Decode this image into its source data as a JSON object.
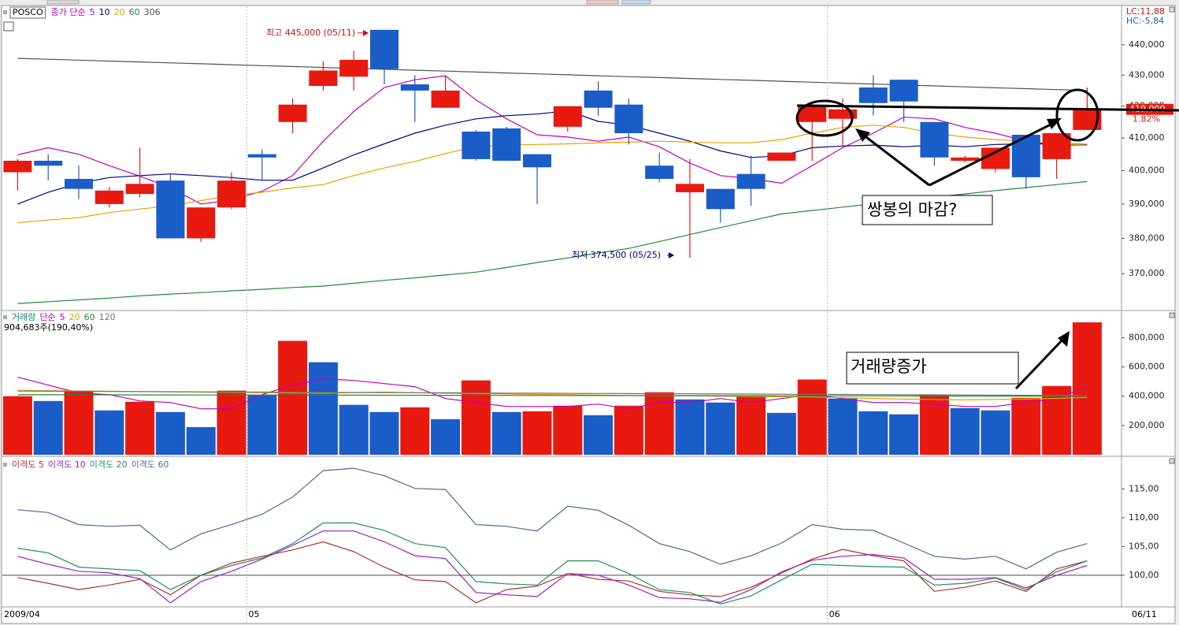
{
  "chart_data": [
    {
      "type": "candlestick",
      "name": "POSCO",
      "legend_prefix": "종가 단순",
      "log_scale": true,
      "up_color": "#e8190e",
      "down_color": "#1a5cc8",
      "open": [
        399500,
        403000,
        397500,
        390000,
        393000,
        397000,
        380000,
        389000,
        405000,
        415000,
        426500,
        429500,
        445000,
        427000,
        419500,
        412000,
        413000,
        405000,
        413500,
        425000,
        420500,
        401500,
        393500,
        394500,
        399000,
        403000,
        415000,
        416000,
        426000,
        428500,
        415000,
        403000,
        400500,
        411000,
        403500,
        412500
      ],
      "high": [
        403500,
        405000,
        401500,
        395000,
        407000,
        399000,
        389000,
        399500,
        406500,
        422500,
        434500,
        438000,
        445000,
        430000,
        430000,
        412500,
        413500,
        405000,
        420000,
        428000,
        422500,
        405500,
        403500,
        394500,
        404500,
        405500,
        421000,
        422500,
        430000,
        428500,
        415000,
        404500,
        407000,
        411000,
        411500,
        426000
      ],
      "low": [
        394000,
        397000,
        391500,
        389000,
        392000,
        380000,
        379000,
        388500,
        397000,
        411500,
        425000,
        425000,
        427000,
        415000,
        419500,
        403000,
        403000,
        390000,
        412000,
        417000,
        408000,
        396500,
        374500,
        384500,
        389500,
        403000,
        403000,
        407500,
        417000,
        415000,
        401500,
        402500,
        399500,
        394500,
        397500,
        412500
      ],
      "close": [
        403000,
        401500,
        394500,
        394000,
        396000,
        380000,
        389000,
        397000,
        404000,
        420500,
        431500,
        435000,
        432000,
        425000,
        425000,
        403500,
        403000,
        401000,
        420000,
        419500,
        411500,
        397500,
        396000,
        388500,
        394500,
        405500,
        420500,
        419000,
        421000,
        421500,
        404000,
        404000,
        407000,
        398000,
        411500,
        419000
      ],
      "series": [
        {
          "name": "5",
          "color": "#c000c0",
          "values": [
            404800,
            407000,
            405000,
            401500,
            398300,
            394800,
            390000,
            391200,
            393800,
            398500,
            409000,
            418300,
            426000,
            428500,
            429800,
            422000,
            416000,
            411000,
            410300,
            409000,
            410300,
            407300,
            402300,
            398500,
            397600,
            396200,
            401500,
            407000,
            411500,
            416500,
            416000,
            413300,
            411500,
            409000,
            407800,
            407800
          ]
        },
        {
          "name": "10",
          "color": "#000080",
          "values": [
            390000,
            393500,
            396200,
            397900,
            398500,
            399000,
            398500,
            397900,
            397100,
            397100,
            400800,
            404800,
            408200,
            411500,
            414000,
            416000,
            417000,
            417500,
            418500,
            415200,
            414000,
            411500,
            409000,
            406000,
            404000,
            404500,
            407000,
            407500,
            407800,
            407300,
            407800,
            407300,
            408000,
            408200,
            408200,
            408000
          ]
        },
        {
          "name": "20",
          "color": "#e8a000",
          "values": [
            384500,
            385300,
            386000,
            387500,
            388500,
            389500,
            391000,
            392500,
            393500,
            394800,
            395800,
            398500,
            400800,
            402800,
            405200,
            407300,
            407800,
            408000,
            408200,
            408500,
            408700,
            409000,
            408700,
            408500,
            408500,
            409500,
            411500,
            413300,
            414000,
            413300,
            411500,
            410300,
            409500,
            409000,
            408200,
            407800
          ]
        },
        {
          "name": "60",
          "color": "#1f8a3a",
          "values": [
            361700,
            362200,
            362700,
            363200,
            363800,
            364300,
            364700,
            365200,
            365600,
            366100,
            366500,
            367300,
            368100,
            368800,
            369600,
            370400,
            371700,
            373100,
            374400,
            375800,
            377100,
            379100,
            381100,
            383100,
            385100,
            387100,
            388100,
            389100,
            390100,
            391100,
            392100,
            393000,
            394000,
            394900,
            395800,
            396700
          ]
        },
        {
          "name": "306",
          "color": "#505050",
          "values": [
            435500,
            435200,
            434900,
            434600,
            434300,
            434000,
            433700,
            433400,
            433100,
            432800,
            432500,
            432200,
            431900,
            431600,
            431300,
            431000,
            430700,
            430400,
            430100,
            429800,
            429500,
            429200,
            428900,
            428600,
            428300,
            428000,
            427700,
            427400,
            427100,
            426800,
            426500,
            426200,
            425900,
            425600,
            425300,
            425000
          ]
        }
      ],
      "ylim": [
        360000,
        453000
      ],
      "yticks": [
        {
          "value": 370000,
          "label": "370,000"
        },
        {
          "value": 380000,
          "label": "380,000"
        },
        {
          "value": 390000,
          "label": "390,000"
        },
        {
          "value": 400000,
          "label": "400,000"
        },
        {
          "value": 410000,
          "label": "410,000"
        },
        {
          "value": 420000,
          "label": "420,000"
        },
        {
          "value": 430000,
          "label": "430,000"
        },
        {
          "value": 440000,
          "label": "440,000"
        }
      ],
      "high_label": "최고 445,000 (05/11)",
      "low_label": "최저 374,500 (05/25)",
      "last_price": {
        "value": 419000,
        "label": "419,000"
      },
      "change": {
        "value": 1.82,
        "label": "1.82%"
      },
      "lc_label": "LC:11,88",
      "hc_label": "HC:-5,84",
      "annotation": "쌍봉의 마감?"
    },
    {
      "type": "bar",
      "title": "거래량",
      "legend_prefix": "단순",
      "up_color": "#e8190e",
      "down_color": "#1a5cc8",
      "values": [
        400000,
        367000,
        438000,
        303000,
        362000,
        292000,
        189000,
        438000,
        411000,
        778000,
        632000,
        341000,
        292000,
        324000,
        243000,
        508000,
        292000,
        297000,
        335000,
        270000,
        335000,
        427000,
        378000,
        357000,
        405000,
        286000,
        514000,
        384000,
        297000,
        276000,
        411000,
        319000,
        303000,
        389000,
        470000,
        904683
      ],
      "series": [
        {
          "name": "5",
          "color": "#c000c0",
          "values": [
            530000,
            476000,
            422000,
            411000,
            368000,
            357000,
            314000,
            314000,
            411000,
            476000,
            519000,
            508000,
            486000,
            465000,
            384000,
            357000,
            330000,
            330000,
            330000,
            346000,
            314000,
            357000,
            357000,
            384000,
            357000,
            384000,
            411000,
            384000,
            357000,
            357000,
            346000,
            330000,
            330000,
            357000,
            384000,
            465000
          ]
        },
        {
          "name": "20",
          "color": "#e8a000",
          "values": [
            440000,
            438000,
            436000,
            434000,
            432000,
            430000,
            428000,
            426000,
            424000,
            422000,
            420000,
            425000,
            428000,
            425000,
            420000,
            418000,
            415000,
            412000,
            410000,
            408000,
            405000,
            403000,
            402000,
            400000,
            398000,
            396000,
            395000,
            390000,
            385000,
            380000,
            378000,
            375000,
            378000,
            380000,
            385000,
            392000
          ]
        },
        {
          "name": "60",
          "color": "#1f8a3a",
          "values": [
            410000,
            409700,
            409400,
            409100,
            408900,
            408600,
            408300,
            408000,
            407700,
            407400,
            407100,
            406900,
            406600,
            406300,
            406000,
            405700,
            405400,
            405100,
            404900,
            404600,
            404300,
            404000,
            403700,
            403400,
            403100,
            402900,
            402600,
            402300,
            402000,
            401700,
            401400,
            401100,
            400900,
            400600,
            400300,
            400000
          ]
        },
        {
          "name": "120",
          "color": "#707070",
          "values": [
            435000,
            434100,
            433300,
            432400,
            431600,
            430700,
            429900,
            429000,
            428100,
            427300,
            426400,
            425600,
            424700,
            423900,
            423000,
            422100,
            421300,
            420400,
            419600,
            418700,
            417900,
            417000,
            416100,
            415300,
            414400,
            413600,
            412700,
            411900,
            411000,
            410100,
            409300,
            408400,
            407600,
            406700,
            405900,
            405000
          ]
        }
      ],
      "ylim": [
        0,
        980000
      ],
      "yticks": [
        {
          "value": 200000,
          "label": "200,000"
        },
        {
          "value": 400000,
          "label": "400,000"
        },
        {
          "value": 600000,
          "label": "600,000"
        },
        {
          "value": 800000,
          "label": "800,000"
        }
      ],
      "volume_label": "904,683주(190,40%)",
      "annotation": "거래량증가"
    },
    {
      "type": "line",
      "categories": [
        "2009/04",
        null,
        null,
        null,
        null,
        null,
        null,
        null,
        "05",
        null,
        null,
        null,
        null,
        null,
        null,
        null,
        null,
        null,
        null,
        null,
        null,
        null,
        null,
        null,
        null,
        null,
        null,
        "06",
        null,
        null,
        null,
        null,
        null,
        null,
        null,
        "06/11"
      ],
      "series": [
        {
          "name": "이격도 5",
          "color": "#b03030",
          "values": [
            99.6,
            98.6,
            97.5,
            98.3,
            99.3,
            96.6,
            100.0,
            102.1,
            103.3,
            104.4,
            105.8,
            104.1,
            101.4,
            99.2,
            98.9,
            95.2,
            97.5,
            98.1,
            100.3,
            99.3,
            99.0,
            97.2,
            96.6,
            96.3,
            97.9,
            100.4,
            102.8,
            104.5,
            103.4,
            102.5,
            97.2,
            97.9,
            99.0,
            97.2,
            101.1,
            102.5
          ]
        },
        {
          "name": "이격도 10",
          "color": "#a020c0",
          "values": [
            103.3,
            101.9,
            100.7,
            100.4,
            99.4,
            95.2,
            98.9,
            100.7,
            102.8,
            105.2,
            107.7,
            107.7,
            105.8,
            103.4,
            102.9,
            97.0,
            96.6,
            96.3,
            100.3,
            100.0,
            98.3,
            96.1,
            95.9,
            95.3,
            97.5,
            100.6,
            102.6,
            103.3,
            103.6,
            103.0,
            99.3,
            99.3,
            99.6,
            97.8,
            100.0,
            101.7
          ]
        },
        {
          "name": "이격도 20",
          "color": "#20905a",
          "values": [
            104.7,
            103.9,
            101.4,
            101.1,
            100.8,
            97.5,
            100.0,
            101.7,
            103.0,
            105.5,
            109.1,
            109.1,
            107.8,
            105.5,
            104.8,
            98.9,
            98.5,
            98.3,
            102.5,
            102.5,
            100.3,
            97.5,
            97.0,
            95.0,
            96.4,
            99.2,
            101.9,
            101.7,
            101.5,
            101.4,
            98.3,
            98.6,
            99.5,
            97.5,
            100.6,
            102.5
          ]
        },
        {
          "name": "이격도 60",
          "color": "#506890",
          "values": [
            111.4,
            110.9,
            108.8,
            108.5,
            108.7,
            104.4,
            107.2,
            108.8,
            110.6,
            113.6,
            118.2,
            118.6,
            117.3,
            115.1,
            114.9,
            108.8,
            108.5,
            107.7,
            112.0,
            111.3,
            108.7,
            105.5,
            104.1,
            101.9,
            103.4,
            105.6,
            108.8,
            108.0,
            107.8,
            105.6,
            103.3,
            102.8,
            103.3,
            101.1,
            104.0,
            105.5
          ]
        }
      ],
      "ylim": [
        94.5,
        120.4
      ],
      "yticks": [
        {
          "value": 100,
          "label": "100,00"
        },
        {
          "value": 105,
          "label": "105,00"
        },
        {
          "value": 110,
          "label": "110,00"
        },
        {
          "value": 115,
          "label": "115,00"
        }
      ],
      "reference_line": 100
    }
  ]
}
